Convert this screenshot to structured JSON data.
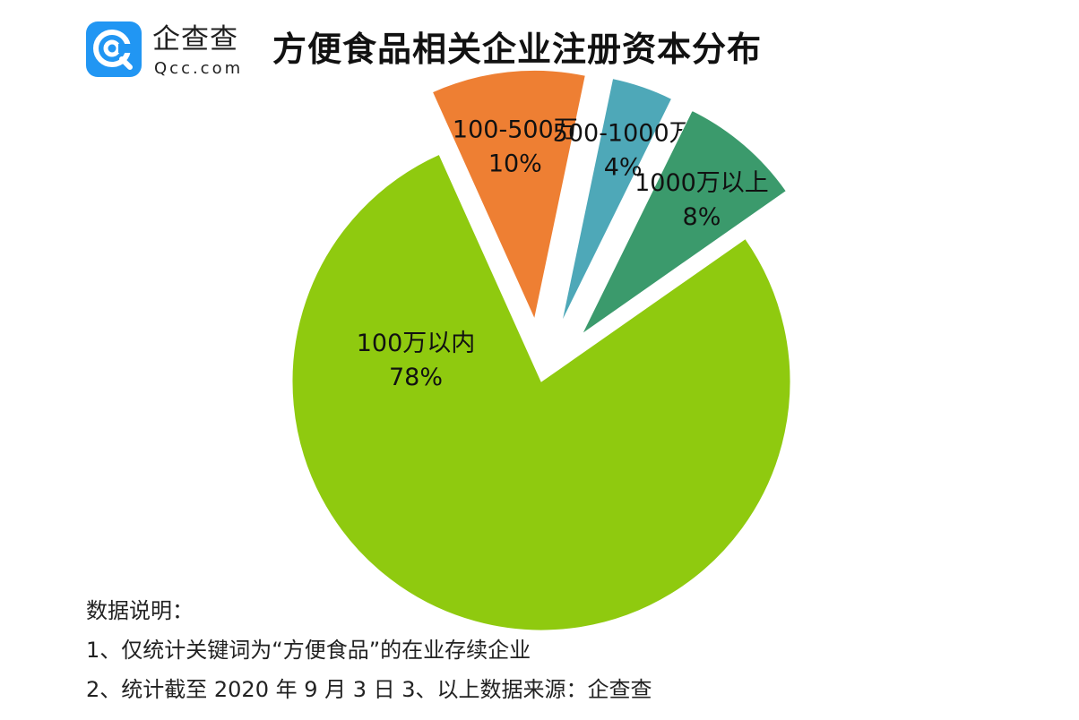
{
  "header": {
    "logo_cn": "企查查",
    "logo_en": "Qcc.com",
    "title": "方便食品相关企业注册资本分布"
  },
  "colors": {
    "brand": "#2196f3",
    "green": "#8fca0f",
    "orange": "#ee7f33",
    "teal": "#4ea8b8",
    "dark_green": "#3b9a6c"
  },
  "chart_data": {
    "type": "pie",
    "title": "方便食品相关企业注册资本分布",
    "slices": [
      {
        "name": "100万以内",
        "label": "100万以内",
        "value": 78,
        "pct_text": "78%",
        "color": "#8fca0f"
      },
      {
        "name": "100-500万",
        "label": "100-500万",
        "value": 10,
        "pct_text": "10%",
        "color": "#ee7f33"
      },
      {
        "name": "500-1000万",
        "label": "500-1000万",
        "value": 4,
        "pct_text": "4%",
        "color": "#4ea8b8"
      },
      {
        "name": "1000万以上",
        "label": "1000万以上",
        "value": 8,
        "pct_text": "8%",
        "color": "#3b9a6c"
      }
    ],
    "legend": "none",
    "exploded": true
  },
  "notes": {
    "heading": "数据说明：",
    "line1": "1、仅统计关键词为“方便食品”的在业存续企业",
    "line2": "2、统计截至 2020 年 9 月 3 日    3、以上数据来源：企查查"
  }
}
